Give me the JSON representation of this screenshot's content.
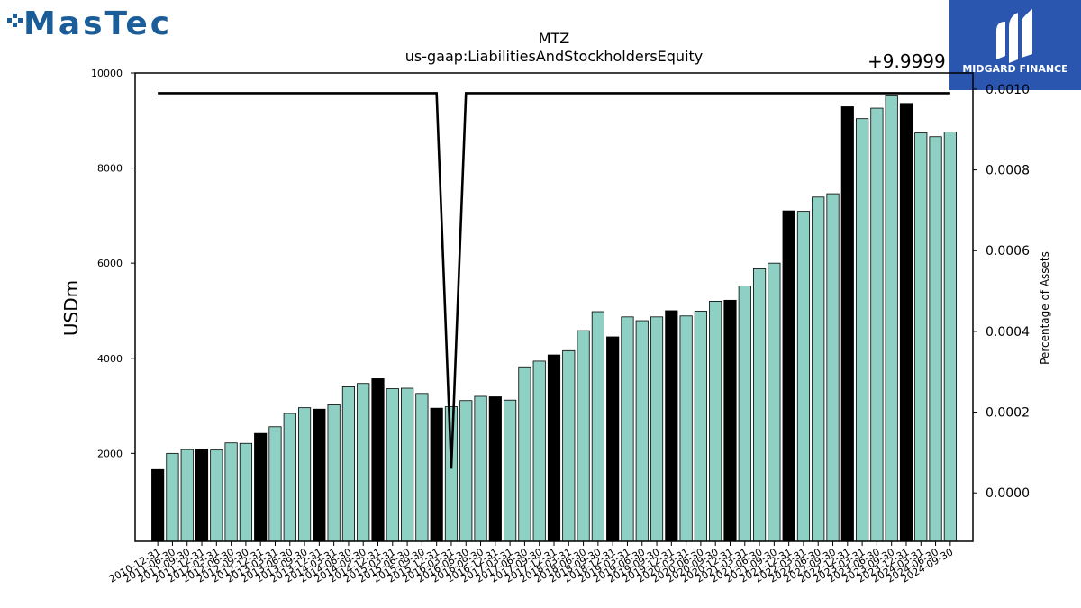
{
  "logos": {
    "left_text": "MasTec",
    "right_text": "MIDGARD FINANCE",
    "left_color": "#1b5d99",
    "right_bg": "#2a56b0"
  },
  "chart_data": {
    "type": "bar",
    "title": "MTZ",
    "subtitle": "us-gaap:LiabilitiesAndStockholdersEquity",
    "ylabel": "USDm",
    "y2label": "Percentage of Assets",
    "y2_offset_text": "+9.9999",
    "ylim": [
      150,
      10000
    ],
    "y2lim": [
      -0.00012,
      0.00104
    ],
    "yticks": [
      2000,
      4000,
      6000,
      8000,
      10000
    ],
    "y2ticks": [
      0.0,
      0.0002,
      0.0004,
      0.0006,
      0.0008,
      0.001
    ],
    "y2tick_labels": [
      "0.0000",
      "0.0002",
      "0.0004",
      "0.0006",
      "0.0008",
      "0.0010"
    ],
    "colors": {
      "bar": "#8fd0c4",
      "bar_highlight": "#000000",
      "line": "#000000"
    },
    "categories": [
      "2010-12-31",
      "2011-06-30",
      "2011-09-30",
      "2011-12-31",
      "2012-03-31",
      "2012-06-30",
      "2012-09-30",
      "2012-12-31",
      "2013-03-31",
      "2013-06-30",
      "2013-09-30",
      "2013-12-31",
      "2014-03-31",
      "2014-06-30",
      "2014-09-30",
      "2014-12-31",
      "2015-03-31",
      "2015-06-30",
      "2015-09-30",
      "2015-12-31",
      "2016-03-31",
      "2016-06-30",
      "2016-09-30",
      "2016-12-31",
      "2017-03-31",
      "2017-06-30",
      "2017-09-30",
      "2017-12-31",
      "2018-03-31",
      "2018-06-30",
      "2018-09-30",
      "2018-12-31",
      "2019-03-31",
      "2019-06-30",
      "2019-09-30",
      "2019-12-31",
      "2020-03-31",
      "2020-06-30",
      "2020-09-30",
      "2020-12-31",
      "2021-03-31",
      "2021-06-30",
      "2021-09-30",
      "2021-12-31",
      "2022-03-31",
      "2022-06-30",
      "2022-09-30",
      "2022-12-31",
      "2023-03-31",
      "2023-06-30",
      "2023-09-30",
      "2023-12-31",
      "2024-03-31",
      "2024-06-30",
      "2024-09-30"
    ],
    "series": [
      {
        "type": "bar",
        "values": [
          1660,
          2000,
          2080,
          2090,
          2070,
          2220,
          2210,
          2420,
          2560,
          2840,
          2960,
          2930,
          3020,
          3400,
          3470,
          3570,
          3360,
          3370,
          3260,
          2950,
          2980,
          3110,
          3200,
          3190,
          3120,
          3820,
          3940,
          4070,
          4160,
          4580,
          4980,
          4450,
          4870,
          4790,
          4870,
          5000,
          4890,
          4990,
          5200,
          5220,
          5520,
          5880,
          6000,
          7100,
          7090,
          7390,
          7460,
          9290,
          9040,
          9260,
          9520,
          9360,
          8740,
          8660,
          8760
        ]
      },
      {
        "type": "line",
        "values": [
          0.00099,
          0.00099,
          0.00099,
          0.00099,
          0.00099,
          0.00099,
          0.00099,
          0.00099,
          0.00099,
          0.00099,
          0.00099,
          0.00099,
          0.00099,
          0.00099,
          0.00099,
          0.00099,
          0.00099,
          0.00099,
          0.00099,
          0.00099,
          6e-05,
          0.00099,
          0.00099,
          0.00099,
          0.00099,
          0.00099,
          0.00099,
          0.00099,
          0.00099,
          0.00099,
          0.00099,
          0.00099,
          0.00099,
          0.00099,
          0.00099,
          0.00099,
          0.00099,
          0.00099,
          0.00099,
          0.00099,
          0.00099,
          0.00099,
          0.00099,
          0.00099,
          0.00099,
          0.00099,
          0.00099,
          0.00099,
          0.00099,
          0.00099,
          0.00099,
          0.00099,
          0.00099,
          0.00099,
          0.00099
        ]
      }
    ],
    "highlight_dates": [
      "2010-12-31",
      "2011-12-31",
      "2012-12-31",
      "2013-12-31",
      "2014-12-31",
      "2015-12-31",
      "2016-12-31",
      "2017-12-31",
      "2018-12-31",
      "2019-12-31",
      "2020-12-31",
      "2021-12-31",
      "2022-12-31",
      "2023-12-31"
    ]
  }
}
